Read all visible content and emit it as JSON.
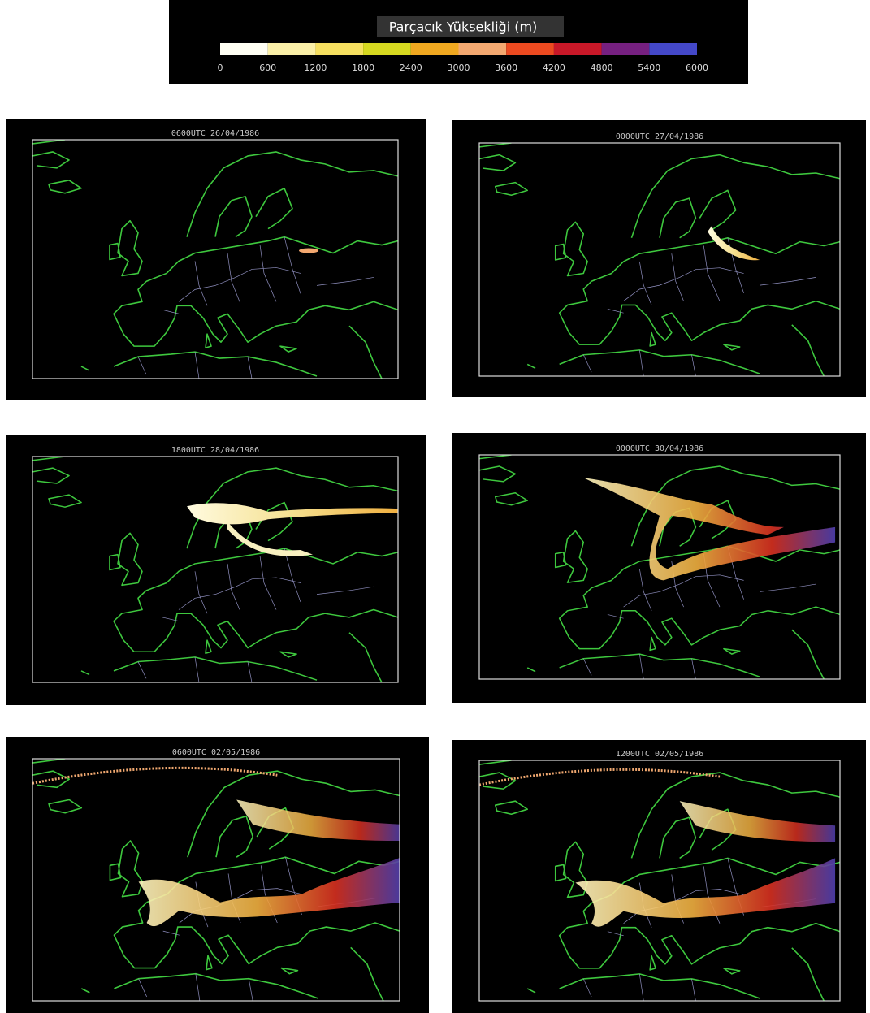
{
  "legend": {
    "title": "Parçacık Yüksekliği  (m)",
    "ticks": [
      0,
      600,
      1200,
      1800,
      2400,
      3000,
      3600,
      4200,
      4800,
      5400,
      6000
    ],
    "colors": [
      "#fffff4",
      "#fbf0a8",
      "#f6e060",
      "#d6d820",
      "#f0a820",
      "#f3a870",
      "#ec4a20",
      "#c81828",
      "#762080",
      "#4448c8"
    ]
  },
  "panels": [
    {
      "title": "0600UTC 26/04/1986"
    },
    {
      "title": "0000UTC 27/04/1986"
    },
    {
      "title": "1800UTC 28/04/1986"
    },
    {
      "title": "0000UTC 30/04/1986"
    },
    {
      "title": "0600UTC 02/05/1986"
    },
    {
      "title": "1200UTC 02/05/1986"
    }
  ]
}
